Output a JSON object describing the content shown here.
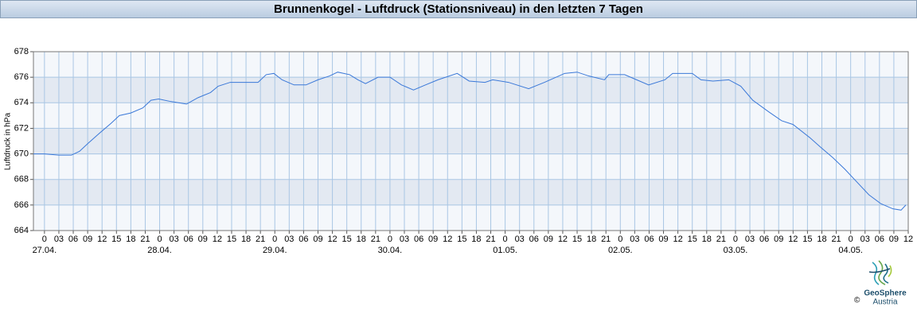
{
  "chart_data": {
    "type": "line",
    "title": "Brunnenkogel - Luftdruck (Stationsniveau) in den letzten 7 Tagen",
    "y_label": "Luftdruck in hPa",
    "series": [
      {
        "color": "#3a78d8",
        "x": [
          -2.3,
          0,
          3,
          5.6,
          7.3,
          9,
          11.4,
          13.9,
          15.6,
          18,
          20.5,
          22.2,
          23.8,
          26.3,
          29.6,
          32,
          34.6,
          36.2,
          38.7,
          42,
          44.5,
          46.2,
          47.8,
          49.5,
          52,
          54.5,
          57,
          59.4,
          61.1,
          63.6,
          65.3,
          66.9,
          69.5,
          72,
          74.4,
          76.9,
          79.4,
          82,
          86,
          88.5,
          91.8,
          93.4,
          96.7,
          100.9,
          104.2,
          108.4,
          111,
          113.4,
          116.7,
          117.6,
          120.9,
          123.4,
          125.9,
          129.3,
          130.9,
          135,
          136.8,
          139.3,
          142.6,
          145.1,
          147.6,
          150.9,
          153.6,
          156,
          159.4,
          161.8,
          164.3,
          166.8,
          169.3,
          171.8,
          174.3,
          176.8,
          178.5,
          179.5
        ],
        "values": [
          670.0,
          670.0,
          669.9,
          669.9,
          670.2,
          670.8,
          671.6,
          672.4,
          673.0,
          673.2,
          673.6,
          674.2,
          674.3,
          674.1,
          673.9,
          674.4,
          674.8,
          675.3,
          675.6,
          675.6,
          675.6,
          676.2,
          676.3,
          675.8,
          675.4,
          675.4,
          675.8,
          676.1,
          676.4,
          676.2,
          675.8,
          675.5,
          676.0,
          676.0,
          675.4,
          675.0,
          675.4,
          675.8,
          676.3,
          675.7,
          675.6,
          675.8,
          675.6,
          675.1,
          675.6,
          676.3,
          676.4,
          676.1,
          675.8,
          676.2,
          676.2,
          675.8,
          675.4,
          675.8,
          676.3,
          676.3,
          675.8,
          675.7,
          675.8,
          675.3,
          674.2,
          673.3,
          672.6,
          672.3,
          671.3,
          670.5,
          669.7,
          668.8,
          667.8,
          666.8,
          666.1,
          665.7,
          665.6,
          666.0
        ]
      }
    ],
    "xlim": [
      -2.3,
      180
    ],
    "xticks": [
      {
        "value": 0,
        "label": "0"
      },
      {
        "value": 3,
        "label": "03"
      },
      {
        "value": 6,
        "label": "06"
      },
      {
        "value": 9,
        "label": "09"
      },
      {
        "value": 12,
        "label": "12"
      },
      {
        "value": 15,
        "label": "15"
      },
      {
        "value": 18,
        "label": "18"
      },
      {
        "value": 21,
        "label": "21"
      },
      {
        "value": 24,
        "label": "0"
      },
      {
        "value": 27,
        "label": "03"
      },
      {
        "value": 30,
        "label": "06"
      },
      {
        "value": 33,
        "label": "09"
      },
      {
        "value": 36,
        "label": "12"
      },
      {
        "value": 39,
        "label": "15"
      },
      {
        "value": 42,
        "label": "18"
      },
      {
        "value": 45,
        "label": "21"
      },
      {
        "value": 48,
        "label": "0"
      },
      {
        "value": 51,
        "label": "03"
      },
      {
        "value": 54,
        "label": "06"
      },
      {
        "value": 57,
        "label": "09"
      },
      {
        "value": 60,
        "label": "12"
      },
      {
        "value": 63,
        "label": "15"
      },
      {
        "value": 66,
        "label": "18"
      },
      {
        "value": 69,
        "label": "21"
      },
      {
        "value": 72,
        "label": "0"
      },
      {
        "value": 75,
        "label": "03"
      },
      {
        "value": 78,
        "label": "06"
      },
      {
        "value": 81,
        "label": "09"
      },
      {
        "value": 84,
        "label": "12"
      },
      {
        "value": 87,
        "label": "15"
      },
      {
        "value": 90,
        "label": "18"
      },
      {
        "value": 93,
        "label": "21"
      },
      {
        "value": 96,
        "label": "0"
      },
      {
        "value": 99,
        "label": "03"
      },
      {
        "value": 102,
        "label": "06"
      },
      {
        "value": 105,
        "label": "09"
      },
      {
        "value": 108,
        "label": "12"
      },
      {
        "value": 111,
        "label": "15"
      },
      {
        "value": 114,
        "label": "18"
      },
      {
        "value": 117,
        "label": "21"
      },
      {
        "value": 120,
        "label": "0"
      },
      {
        "value": 123,
        "label": "03"
      },
      {
        "value": 126,
        "label": "06"
      },
      {
        "value": 129,
        "label": "09"
      },
      {
        "value": 132,
        "label": "12"
      },
      {
        "value": 135,
        "label": "15"
      },
      {
        "value": 138,
        "label": "18"
      },
      {
        "value": 141,
        "label": "21"
      },
      {
        "value": 144,
        "label": "0"
      },
      {
        "value": 147,
        "label": "03"
      },
      {
        "value": 150,
        "label": "06"
      },
      {
        "value": 153,
        "label": "09"
      },
      {
        "value": 156,
        "label": "12"
      },
      {
        "value": 159,
        "label": "15"
      },
      {
        "value": 162,
        "label": "18"
      },
      {
        "value": 165,
        "label": "21"
      },
      {
        "value": 168,
        "label": "0"
      },
      {
        "value": 171,
        "label": "03"
      },
      {
        "value": 174,
        "label": "06"
      },
      {
        "value": 177,
        "label": "09"
      },
      {
        "value": 180,
        "label": "12"
      }
    ],
    "date_ticks": [
      {
        "value": 0,
        "label": "27.04."
      },
      {
        "value": 24,
        "label": "28.04."
      },
      {
        "value": 48,
        "label": "29.04."
      },
      {
        "value": 72,
        "label": "30.04."
      },
      {
        "value": 96,
        "label": "01.05."
      },
      {
        "value": 120,
        "label": "02.05."
      },
      {
        "value": 144,
        "label": "03.05."
      },
      {
        "value": 168,
        "label": "04.05."
      }
    ],
    "ylim": [
      664,
      678
    ],
    "yticks": [
      664,
      666,
      668,
      670,
      672,
      674,
      676,
      678
    ],
    "grid": true
  },
  "logo": {
    "name": "GeoSphere",
    "sub": "Austria",
    "copyright": "©"
  }
}
